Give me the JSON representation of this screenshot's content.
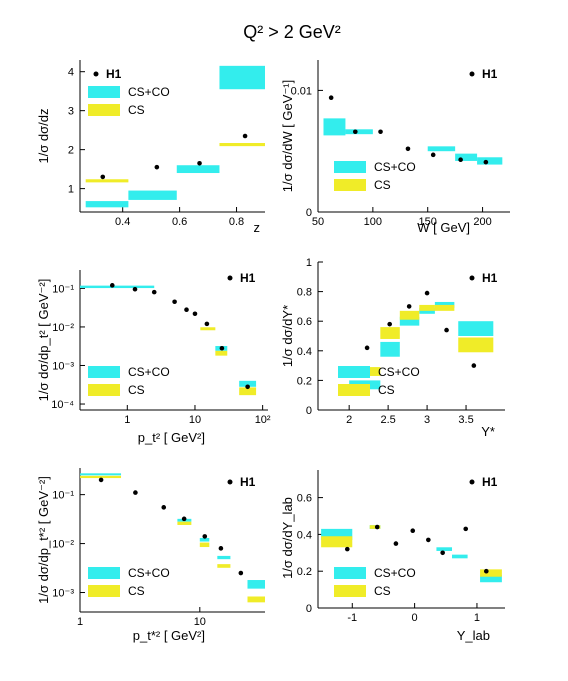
{
  "title": "Q² > 2 GeV²",
  "colors": {
    "cs_co": "#33eded",
    "cs": "#f0ec28",
    "h1": "#000000"
  },
  "legend_labels": {
    "h1": "H1",
    "cs_co": "CS+CO",
    "cs": "CS"
  },
  "chart_data": [
    {
      "type": "scatter",
      "id": "z",
      "ylabel": "1/σ dσ/dz",
      "xlabel": "z",
      "xlim": [
        0.25,
        0.9
      ],
      "ylim": [
        0.4,
        4.3
      ],
      "xscale": "linear",
      "yscale": "linear",
      "xticks": [
        0.4,
        0.6,
        0.8
      ],
      "xtick_labels": [
        "0.4",
        "0.6",
        "0.8"
      ],
      "yticks": [
        1,
        2,
        3,
        4
      ],
      "ytick_labels": [
        "1",
        "2",
        "3",
        "4"
      ],
      "h1": [
        [
          0.33,
          1.3
        ],
        [
          0.52,
          1.55
        ],
        [
          0.67,
          1.65
        ],
        [
          0.83,
          2.35
        ]
      ],
      "cs_co": [
        [
          0.27,
          0.42,
          0.6,
          0.08
        ],
        [
          0.42,
          0.59,
          0.83,
          0.12
        ],
        [
          0.59,
          0.74,
          1.5,
          0.1
        ],
        [
          0.74,
          0.9,
          3.85,
          0.3
        ]
      ],
      "cs": [
        [
          0.27,
          0.42,
          1.2,
          0.04
        ],
        [
          0.74,
          0.9,
          2.13,
          0.04
        ]
      ]
    },
    {
      "type": "scatter",
      "id": "w",
      "ylabel": "1/σ dσ/dW [ GeV⁻¹]",
      "xlabel": "W [ GeV]",
      "xlim": [
        50,
        225
      ],
      "ylim": [
        0,
        0.0125
      ],
      "xscale": "linear",
      "yscale": "linear",
      "xticks": [
        50,
        100,
        150,
        200
      ],
      "xtick_labels": [
        "50",
        "100",
        "150",
        "200"
      ],
      "yticks": [
        0,
        0.01
      ],
      "ytick_labels": [
        "0",
        "0.01"
      ],
      "h1": [
        [
          62,
          0.0094
        ],
        [
          84,
          0.0066
        ],
        [
          107,
          0.0066
        ],
        [
          132,
          0.0052
        ],
        [
          155,
          0.0047
        ],
        [
          180,
          0.0043
        ],
        [
          203,
          0.0041
        ]
      ],
      "cs_co": [
        [
          55,
          75,
          0.007,
          0.0007
        ],
        [
          75,
          100,
          0.0066,
          0.0002
        ],
        [
          150,
          175,
          0.0052,
          0.0002
        ],
        [
          175,
          195,
          0.0045,
          0.0003
        ],
        [
          195,
          218,
          0.0042,
          0.0003
        ]
      ],
      "cs": []
    },
    {
      "type": "scatter",
      "id": "pt2",
      "ylabel": "1/σ dσ/dp_t² [ GeV⁻²]",
      "xlabel": "p_t² [ GeV²]",
      "xlim": [
        0.2,
        120
      ],
      "ylim": [
        7e-05,
        0.3
      ],
      "xscale": "log",
      "yscale": "log",
      "xticks": [
        1,
        10,
        100
      ],
      "xtick_labels": [
        "1",
        "10",
        "10²"
      ],
      "yticks": [
        0.1,
        0.01,
        0.001,
        0.0001
      ],
      "ytick_labels": [
        "10⁻¹",
        "10⁻²",
        "10⁻³",
        "10⁻⁴"
      ],
      "h1": [
        [
          0.6,
          0.12
        ],
        [
          1.3,
          0.095
        ],
        [
          2.5,
          0.08
        ],
        [
          5,
          0.045
        ],
        [
          7.5,
          0.028
        ],
        [
          10,
          0.022
        ],
        [
          15,
          0.012
        ],
        [
          25,
          0.0028
        ],
        [
          60,
          0.00028
        ]
      ],
      "cs_co": [
        [
          0.2,
          2.5,
          0.11,
          0.008
        ],
        [
          20,
          30,
          0.0028,
          0.0004
        ],
        [
          45,
          80,
          0.00034,
          6e-05
        ]
      ],
      "cs": [
        [
          12,
          20,
          0.009,
          0.0008
        ],
        [
          20,
          30,
          0.0021,
          0.0003
        ],
        [
          45,
          80,
          0.00022,
          5e-05
        ]
      ]
    },
    {
      "type": "scatter",
      "id": "ystar",
      "ylabel": "1/σ dσ/dY*",
      "xlabel": "Y*",
      "xlim": [
        1.6,
        4.0
      ],
      "ylim": [
        0,
        1
      ],
      "xscale": "linear",
      "yscale": "linear",
      "xticks": [
        2,
        2.5,
        3,
        3.5
      ],
      "xtick_labels": [
        "2",
        "2.5",
        "3",
        "3.5"
      ],
      "yticks": [
        0,
        0.2,
        0.4,
        0.6,
        0.8,
        1
      ],
      "ytick_labels": [
        "0",
        "0.2",
        "0.4",
        "0.6",
        "0.8",
        "1"
      ],
      "h1": [
        [
          2.23,
          0.42
        ],
        [
          2.52,
          0.58
        ],
        [
          2.77,
          0.7
        ],
        [
          3.0,
          0.79
        ],
        [
          3.25,
          0.54
        ],
        [
          3.6,
          0.3
        ]
      ],
      "cs_co": [
        [
          2.0,
          2.4,
          0.17,
          0.03
        ],
        [
          2.4,
          2.65,
          0.41,
          0.05
        ],
        [
          2.65,
          2.9,
          0.6,
          0.03
        ],
        [
          2.9,
          3.1,
          0.67,
          0.02
        ],
        [
          3.1,
          3.35,
          0.71,
          0.02
        ],
        [
          3.4,
          3.85,
          0.55,
          0.05
        ]
      ],
      "cs": [
        [
          2.0,
          2.4,
          0.26,
          0.03
        ],
        [
          2.4,
          2.65,
          0.52,
          0.04
        ],
        [
          2.65,
          2.9,
          0.64,
          0.03
        ],
        [
          2.9,
          3.1,
          0.69,
          0.02
        ],
        [
          3.1,
          3.35,
          0.69,
          0.02
        ],
        [
          3.4,
          3.85,
          0.44,
          0.05
        ]
      ]
    },
    {
      "type": "scatter",
      "id": "pt2_star",
      "ylabel": "1/σ dσ/dp_t*² [ GeV⁻²]",
      "xlabel": "p_t*² [ GeV²]",
      "xlim": [
        1,
        35
      ],
      "ylim": [
        0.0004,
        0.35
      ],
      "xscale": "log",
      "yscale": "log",
      "xticks": [
        1,
        10
      ],
      "xtick_labels": [
        "1",
        "10"
      ],
      "yticks": [
        0.1,
        0.01,
        0.001
      ],
      "ytick_labels": [
        "10⁻¹",
        "10⁻²",
        "10⁻³"
      ],
      "h1": [
        [
          1.5,
          0.2
        ],
        [
          2.9,
          0.11
        ],
        [
          5,
          0.055
        ],
        [
          7.4,
          0.032
        ],
        [
          11,
          0.014
        ],
        [
          15,
          0.008
        ],
        [
          22,
          0.0025
        ]
      ],
      "cs_co": [
        [
          1,
          2.2,
          0.26,
          0.012
        ],
        [
          6.5,
          8.5,
          0.03,
          0.002
        ],
        [
          10,
          12,
          0.012,
          0.001
        ],
        [
          14,
          18,
          0.0052,
          0.0004
        ],
        [
          25,
          35,
          0.0015,
          0.0003
        ]
      ],
      "cs": [
        [
          1,
          2.2,
          0.23,
          0.012
        ],
        [
          6.5,
          8.5,
          0.026,
          0.002
        ],
        [
          10,
          12,
          0.0095,
          0.001
        ],
        [
          14,
          18,
          0.0035,
          0.0003
        ],
        [
          25,
          35,
          0.00073,
          0.0001
        ]
      ]
    },
    {
      "type": "scatter",
      "id": "ylab",
      "ylabel": "1/σ dσ/dY_lab",
      "xlabel": "Y_lab",
      "xlim": [
        -1.55,
        1.45
      ],
      "ylim": [
        0,
        0.75
      ],
      "xscale": "linear",
      "yscale": "linear",
      "xticks": [
        -1,
        0,
        1
      ],
      "xtick_labels": [
        "-1",
        "0",
        "1"
      ],
      "yticks": [
        0,
        0.2,
        0.4,
        0.6
      ],
      "ytick_labels": [
        "0",
        "0.2",
        "0.4",
        "0.6"
      ],
      "h1": [
        [
          -1.08,
          0.32
        ],
        [
          -0.6,
          0.44
        ],
        [
          -0.3,
          0.35
        ],
        [
          -0.03,
          0.42
        ],
        [
          0.22,
          0.37
        ],
        [
          0.45,
          0.3
        ],
        [
          0.82,
          0.43
        ],
        [
          1.15,
          0.2
        ]
      ],
      "cs_co": [
        [
          -1.5,
          -1.0,
          0.4,
          0.03
        ],
        [
          -0.72,
          -0.55,
          0.44,
          0.01
        ],
        [
          0.35,
          0.6,
          0.32,
          0.01
        ],
        [
          0.6,
          0.85,
          0.28,
          0.01
        ],
        [
          1.05,
          1.4,
          0.16,
          0.02
        ]
      ],
      "cs": [
        [
          -1.5,
          -1.0,
          0.36,
          0.03
        ],
        [
          -0.72,
          -0.55,
          0.44,
          0.01
        ],
        [
          1.05,
          1.4,
          0.19,
          0.02
        ]
      ]
    }
  ]
}
